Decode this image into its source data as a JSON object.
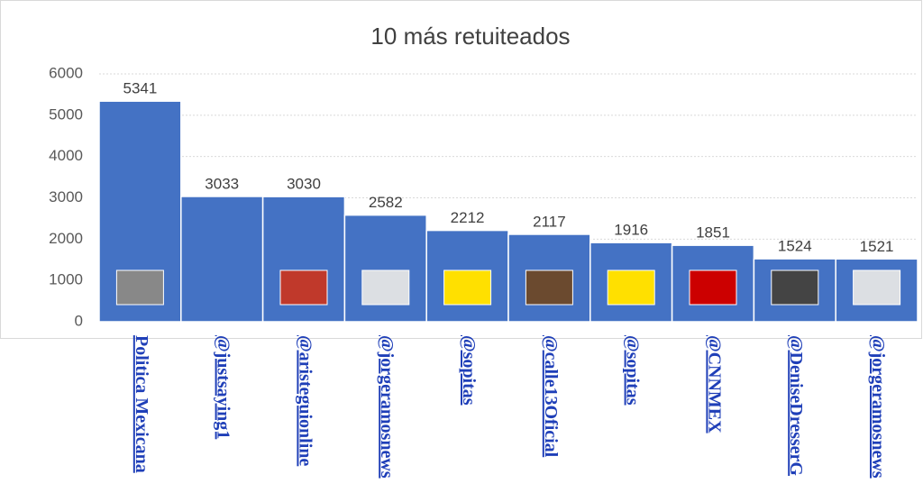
{
  "chart_data": {
    "type": "bar",
    "title": "10 más retuiteados",
    "categories": [
      "Politica Mexicana",
      "@justsaying1",
      "@aristeguionline",
      "@jorgeramosnews",
      "@sopitas",
      "@calle13Oficial",
      "@sopitas",
      "@CNNMEX",
      "@DeniseDresserG",
      "@jorgeramosnews"
    ],
    "values": [
      5341,
      3033,
      3030,
      2582,
      2212,
      2117,
      1916,
      1851,
      1524,
      1521
    ],
    "color": "#4472c4",
    "ylim": [
      0,
      6000
    ],
    "yticks": [
      0,
      1000,
      2000,
      3000,
      4000,
      5000,
      6000
    ],
    "grid": true
  }
}
